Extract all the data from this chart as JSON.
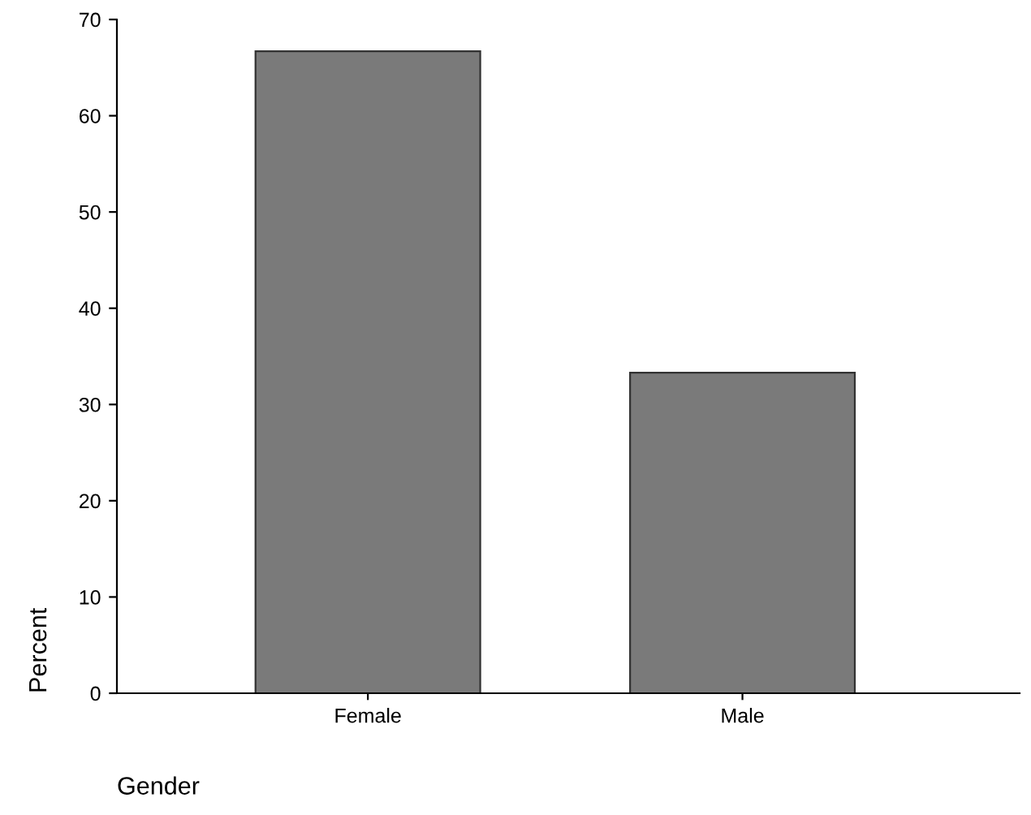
{
  "chart_data": {
    "type": "bar",
    "xlabel": "Gender",
    "ylabel": "Percent",
    "categories": [
      "Female",
      "Male"
    ],
    "values": [
      66.7,
      33.3
    ],
    "color": "#7a7a7a",
    "ylim": [
      0,
      70
    ],
    "yticks": [
      0,
      10,
      20,
      30,
      40,
      50,
      60,
      70
    ],
    "grid": false,
    "legend": false
  }
}
